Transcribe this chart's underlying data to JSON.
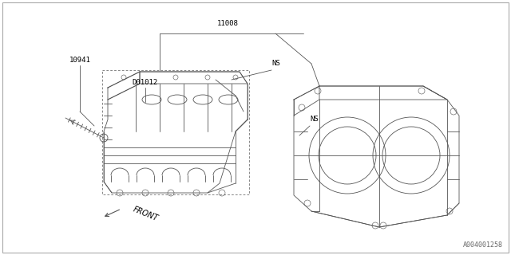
{
  "background_color": "#ffffff",
  "border_color": "#888888",
  "title_bottom": "A004001258",
  "label_11008": "11008",
  "label_10941": "10941",
  "label_D01012": "D01012",
  "label_NS1": "NS",
  "label_NS2": "NS",
  "label_FRONT": "FRONT",
  "line_color": "#555555",
  "text_color": "#000000",
  "font_size_labels": 6.5,
  "font_size_bottom": 6
}
